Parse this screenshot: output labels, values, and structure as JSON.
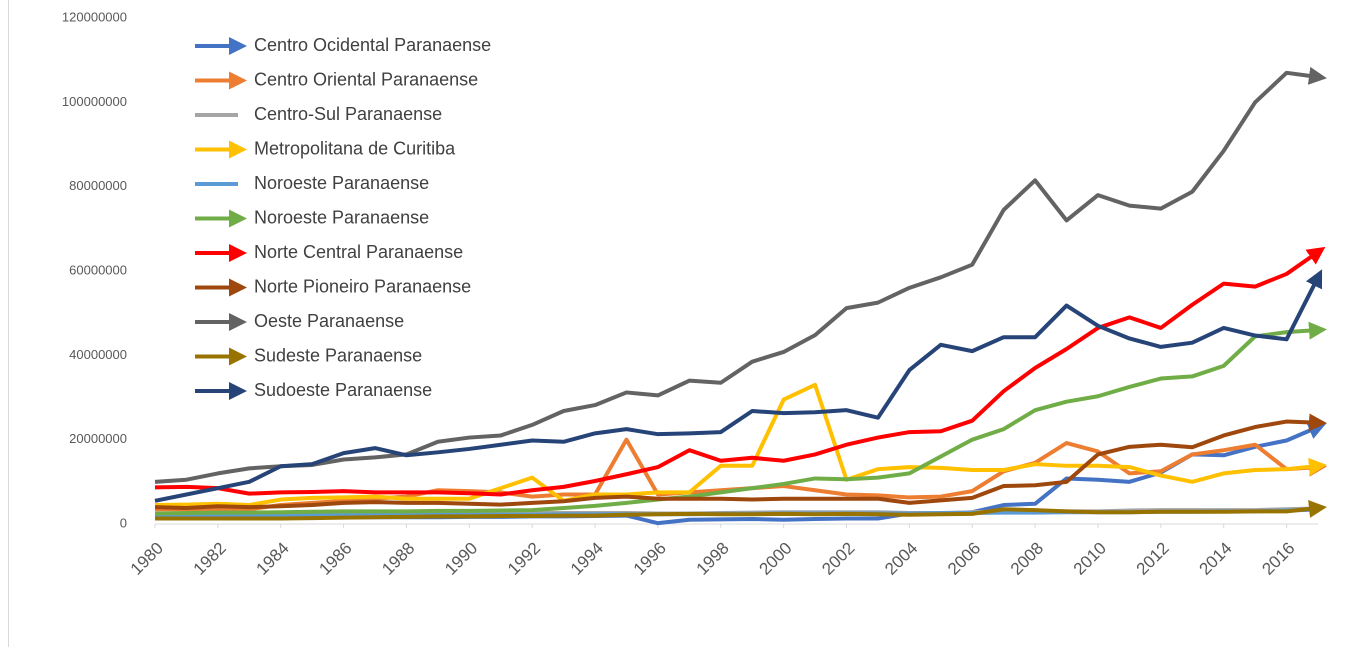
{
  "chart_data": {
    "type": "line",
    "x": [
      1980,
      1981,
      1982,
      1983,
      1984,
      1985,
      1986,
      1987,
      1988,
      1989,
      1990,
      1991,
      1992,
      1993,
      1994,
      1995,
      1996,
      1997,
      1998,
      1999,
      2000,
      2001,
      2002,
      2003,
      2004,
      2005,
      2006,
      2007,
      2008,
      2009,
      2010,
      2011,
      2012,
      2013,
      2014,
      2015,
      2016,
      2017
    ],
    "xlim": [
      1980,
      2017
    ],
    "xticks": [
      1980,
      1982,
      1984,
      1986,
      1988,
      1990,
      1992,
      1994,
      1996,
      1998,
      2000,
      2002,
      2004,
      2006,
      2008,
      2010,
      2012,
      2014,
      2016
    ],
    "ylim": [
      0,
      120000000
    ],
    "yticks": [
      0,
      20000000,
      40000000,
      60000000,
      80000000,
      100000000,
      120000000
    ],
    "legend": "top-left",
    "series": [
      {
        "name": "Centro Ocidental Paranaense",
        "color": "#4472c4",
        "end_arrow": true,
        "values": [
          1500000.0,
          1500000.0,
          1500000.0,
          1500000.0,
          1500000.0,
          1500000.0,
          1600000.0,
          1600000.0,
          1600000.0,
          1600000.0,
          1700000.0,
          1700000.0,
          1800000.0,
          1800000.0,
          1900000.0,
          2000000.0,
          200000.0,
          1000000.0,
          1100000.0,
          1200000.0,
          1000000.0,
          1200000.0,
          1300000.0,
          1300000.0,
          2500000.0,
          2500000.0,
          2800000.0,
          4500000.0,
          4800000.0,
          10800000.0,
          10500000.0,
          10000000.0,
          12200000.0,
          16500000.0,
          16300000.0,
          18300000.0,
          19800000.0,
          23000000.0
        ]
      },
      {
        "name": "Centro Oriental Paranaense",
        "color": "#ed7d31",
        "end_arrow": true,
        "values": [
          3500000.0,
          3500000.0,
          3500000.0,
          3500000.0,
          4500000.0,
          5000000.0,
          5500000.0,
          6000000.0,
          6500000.0,
          8000000.0,
          7800000.0,
          7500000.0,
          6500000.0,
          7000000.0,
          7000000.0,
          20000000.0,
          7000000.0,
          7500000.0,
          8000000.0,
          8500000.0,
          9000000.0,
          8000000.0,
          7000000.0,
          6800000.0,
          6300000.0,
          6500000.0,
          7800000.0,
          12500000.0,
          14500000.0,
          19200000.0,
          17200000.0,
          12000000.0,
          12500000.0,
          16500000.0,
          17500000.0,
          18800000.0,
          13000000.0,
          13500000.0
        ]
      },
      {
        "name": "Centro-Sul Paranaense",
        "color": "#a5a5a5",
        "end_arrow": false,
        "values": [
          2300000.0,
          2300000.0,
          2400000.0,
          2300000.0,
          2300000.0,
          2400000.0,
          2500000.0,
          2500000.0,
          2500000.0,
          2500000.0,
          2500000.0,
          2500000.0,
          2600000.0,
          2600000.0,
          2600000.0,
          2600000.0,
          2500000.0,
          2500000.0,
          2600000.0,
          2700000.0,
          2800000.0,
          2800000.0,
          2800000.0,
          2800000.0,
          2600000.0,
          2600000.0,
          2800000.0,
          3000000.0,
          3000000.0,
          3000000.0,
          3000000.0,
          3200000.0,
          3300000.0,
          3300000.0,
          3300000.0,
          3300000.0,
          3500000.0,
          3700000.0
        ]
      },
      {
        "name": "Metropolitana de Curitiba",
        "color": "#ffc000",
        "end_arrow": true,
        "values": [
          4500000.0,
          4600000.0,
          4800000.0,
          4500000.0,
          5800000.0,
          6200000.0,
          6300000.0,
          6500000.0,
          6000000.0,
          6000000.0,
          6000000.0,
          8500000.0,
          11000000.0,
          5500000.0,
          7000000.0,
          7000000.0,
          7500000.0,
          7500000.0,
          13800000.0,
          13800000.0,
          29500000.0,
          33000000.0,
          10500000.0,
          13000000.0,
          13500000.0,
          13300000.0,
          12800000.0,
          12800000.0,
          14200000.0,
          13800000.0,
          13800000.0,
          13500000.0,
          11500000.0,
          10000000.0,
          12000000.0,
          12800000.0,
          13000000.0,
          13800000.0
        ]
      },
      {
        "name": "Noroeste Paranaense",
        "color": "#5b9bd5",
        "end_arrow": false,
        "values": [
          2000000.0,
          2000000.0,
          2000000.0,
          2000000.0,
          2000000.0,
          2100000.0,
          2100000.0,
          2100000.0,
          2100000.0,
          2200000.0,
          2200000.0,
          2200000.0,
          2200000.0,
          2300000.0,
          2300000.0,
          2300000.0,
          2300000.0,
          2300000.0,
          2400000.0,
          2400000.0,
          2500000.0,
          2500000.0,
          2500000.0,
          2500000.0,
          2500000.0,
          2600000.0,
          2600000.0,
          2700000.0,
          2700000.0,
          2800000.0,
          2800000.0,
          2800000.0,
          2900000.0,
          2900000.0,
          3000000.0,
          3000000.0,
          3200000.0,
          3400000.0
        ]
      },
      {
        "name": "Noroeste Paranaense",
        "color": "#70ad47",
        "end_arrow": true,
        "values": [
          2500000.0,
          2600000.0,
          2700000.0,
          2700000.0,
          2800000.0,
          2900000.0,
          3000000.0,
          3000000.0,
          3000000.0,
          3100000.0,
          3100000.0,
          3200000.0,
          3300000.0,
          3800000.0,
          4300000.0,
          5000000.0,
          5800000.0,
          6500000.0,
          7500000.0,
          8500000.0,
          9500000.0,
          10800000.0,
          10600000.0,
          11000000.0,
          12000000.0,
          16000000.0,
          20000000.0,
          22500000.0,
          27000000.0,
          29000000.0,
          30300000.0,
          32500000.0,
          34500000.0,
          35000000.0,
          37500000.0,
          44500000.0,
          45500000.0,
          46000000.0
        ]
      },
      {
        "name": "Norte Central Paranaense",
        "color": "#ff0000",
        "end_arrow": true,
        "values": [
          8700000.0,
          8800000.0,
          8500000.0,
          7200000.0,
          7500000.0,
          7600000.0,
          7800000.0,
          7500000.0,
          7500000.0,
          7500000.0,
          7300000.0,
          7000000.0,
          8000000.0,
          8800000.0,
          10200000.0,
          11800000.0,
          13500000.0,
          17500000.0,
          15000000.0,
          15700000.0,
          15000000.0,
          16500000.0,
          18800000.0,
          20500000.0,
          21800000.0,
          22000000.0,
          24500000.0,
          31500000.0,
          37000000.0,
          41500000.0,
          46500000.0,
          49000000.0,
          46500000.0,
          52000000.0,
          57000000.0,
          56300000.0,
          59300000.0,
          64500000.0
        ]
      },
      {
        "name": "Norte Pioneiro Paranaense",
        "color": "#9e480e",
        "end_arrow": true,
        "values": [
          4000000.0,
          3800000.0,
          4200000.0,
          4000000.0,
          4200000.0,
          4500000.0,
          5000000.0,
          5200000.0,
          5000000.0,
          5000000.0,
          4800000.0,
          4600000.0,
          5000000.0,
          5400000.0,
          6200000.0,
          6500000.0,
          6000000.0,
          6000000.0,
          6000000.0,
          5800000.0,
          6000000.0,
          6000000.0,
          6000000.0,
          6000000.0,
          5000000.0,
          5600000.0,
          6200000.0,
          9000000.0,
          9200000.0,
          10000000.0,
          16500000.0,
          18300000.0,
          18800000.0,
          18200000.0,
          21000000.0,
          23000000.0,
          24300000.0,
          24000000.0
        ]
      },
      {
        "name": "Oeste Paranaense",
        "color": "#636363",
        "end_arrow": true,
        "values": [
          10000000.0,
          10500000.0,
          12000000.0,
          13200000.0,
          13700000.0,
          14000000.0,
          15300000.0,
          15800000.0,
          16500000.0,
          19500000.0,
          20500000.0,
          21000000.0,
          23500000.0,
          26800000.0,
          28200000.0,
          31200000.0,
          30500000.0,
          34000000.0,
          33500000.0,
          38500000.0,
          40800000.0,
          44800000.0,
          51200000.0,
          52500000.0,
          56000000.0,
          58500000.0,
          61500000.0,
          74500000.0,
          81500000.0,
          72000000.0,
          78000000.0,
          75500000.0,
          74800000.0,
          78800000.0,
          88500000.0,
          100000000.0,
          107000000.0,
          106000000.0
        ]
      },
      {
        "name": "Sudeste Paranaense",
        "color": "#997300",
        "end_arrow": true,
        "values": [
          1300000.0,
          1300000.0,
          1300000.0,
          1300000.0,
          1300000.0,
          1400000.0,
          1500000.0,
          1600000.0,
          1700000.0,
          1800000.0,
          1800000.0,
          1900000.0,
          1900000.0,
          2000000.0,
          2000000.0,
          2200000.0,
          2300000.0,
          2400000.0,
          2300000.0,
          2300000.0,
          2400000.0,
          2300000.0,
          2400000.0,
          2300000.0,
          2200000.0,
          2300000.0,
          2400000.0,
          3500000.0,
          3300000.0,
          3000000.0,
          2800000.0,
          2800000.0,
          2900000.0,
          2900000.0,
          2900000.0,
          3000000.0,
          3000000.0,
          3800000.0
        ]
      },
      {
        "name": "Sudoeste Paranaense",
        "color": "#264478",
        "end_arrow": true,
        "values": [
          5500000.0,
          7000000.0,
          8500000.0,
          10000000.0,
          13700000.0,
          14200000.0,
          16800000.0,
          18000000.0,
          16300000.0,
          17000000.0,
          17800000.0,
          18800000.0,
          19800000.0,
          19500000.0,
          21500000.0,
          22500000.0,
          21300000.0,
          21500000.0,
          21800000.0,
          26800000.0,
          26300000.0,
          26500000.0,
          27000000.0,
          25200000.0,
          36500000.0,
          42500000.0,
          41000000.0,
          44300000.0,
          44300000.0,
          51800000.0,
          47000000.0,
          44000000.0,
          42000000.0,
          43000000.0,
          46500000.0,
          44700000.0,
          43800000.0,
          58500000.0
        ]
      }
    ]
  }
}
